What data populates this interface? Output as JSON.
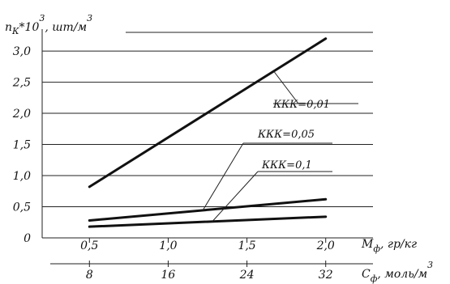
{
  "chart_data": {
    "type": "line",
    "y_axis": {
      "label_main": "n",
      "label_sub": "К",
      "label_mult": "*10",
      "label_exp": "3",
      "label_unit": ", шт/м",
      "label_unit_exp": "3",
      "ticks": [
        0,
        0.5,
        1.0,
        1.5,
        2.0,
        2.5,
        3.0
      ],
      "tick_labels": [
        "0",
        "0,5",
        "1,0",
        "1,5",
        "2,0",
        "2,5",
        "3,0"
      ],
      "range": [
        0,
        3.3
      ]
    },
    "x_axis_primary": {
      "label_main": "M",
      "label_sub": "ф",
      "label_unit": ", гр/кг",
      "ticks": [
        0.5,
        1.0,
        1.5,
        2.0
      ],
      "tick_labels": [
        "0,5",
        "1,0",
        "1,5",
        "2,0"
      ],
      "range": [
        0.2,
        2.3
      ]
    },
    "x_axis_secondary": {
      "label_main": "C",
      "label_sub": "ф",
      "label_unit": ", моль/м",
      "label_unit_exp": "3",
      "ticks": [
        8,
        16,
        24,
        32
      ],
      "tick_labels": [
        "8",
        "16",
        "24",
        "32"
      ]
    },
    "grid": "horizontal",
    "series": [
      {
        "name": "ККК=0,01",
        "x": [
          0.5,
          2.0
        ],
        "y": [
          0.82,
          3.2
        ]
      },
      {
        "name": "ККК=0,05",
        "x": [
          0.5,
          2.0
        ],
        "y": [
          0.28,
          0.62
        ]
      },
      {
        "name": "ККК=0,1",
        "x": [
          0.5,
          2.0
        ],
        "y": [
          0.18,
          0.34
        ]
      }
    ]
  }
}
